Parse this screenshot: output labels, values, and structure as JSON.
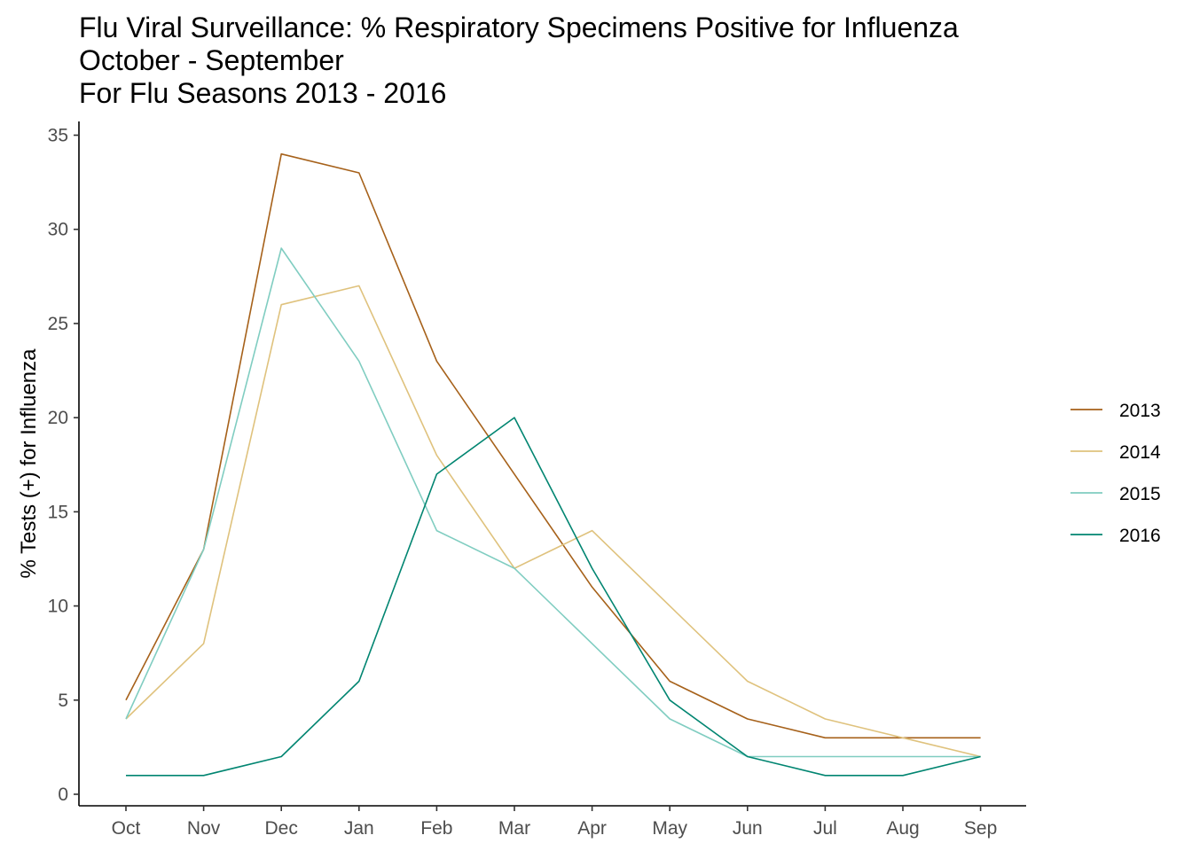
{
  "chart_data": {
    "type": "line",
    "title": [
      "Flu Viral Surveillance: % Respiratory Specimens Positive for Influenza",
      "October - September",
      "For Flu Seasons 2013 - 2016"
    ],
    "xlabel": "",
    "ylabel": "% Tests (+) for Influenza",
    "categories": [
      "Oct",
      "Nov",
      "Dec",
      "Jan",
      "Feb",
      "Mar",
      "Apr",
      "May",
      "Jun",
      "Jul",
      "Aug",
      "Sep"
    ],
    "ylim": [
      0,
      35
    ],
    "yticks": [
      0,
      5,
      10,
      15,
      20,
      25,
      30,
      35
    ],
    "grid": false,
    "legend_position": "right",
    "series": [
      {
        "name": "2013",
        "color": "#a6611a",
        "values": [
          5,
          13,
          34,
          33,
          23,
          17,
          11,
          6,
          4,
          3,
          3,
          3
        ]
      },
      {
        "name": "2014",
        "color": "#dfc27d",
        "values": [
          4,
          8,
          26,
          27,
          18,
          12,
          14,
          10,
          6,
          4,
          3,
          2
        ]
      },
      {
        "name": "2015",
        "color": "#80cdc1",
        "values": [
          4,
          13,
          29,
          23,
          14,
          12,
          8,
          4,
          2,
          2,
          2,
          2
        ]
      },
      {
        "name": "2016",
        "color": "#018571",
        "values": [
          1,
          1,
          2,
          6,
          17,
          20,
          12,
          5,
          2,
          1,
          1,
          2
        ]
      }
    ]
  }
}
